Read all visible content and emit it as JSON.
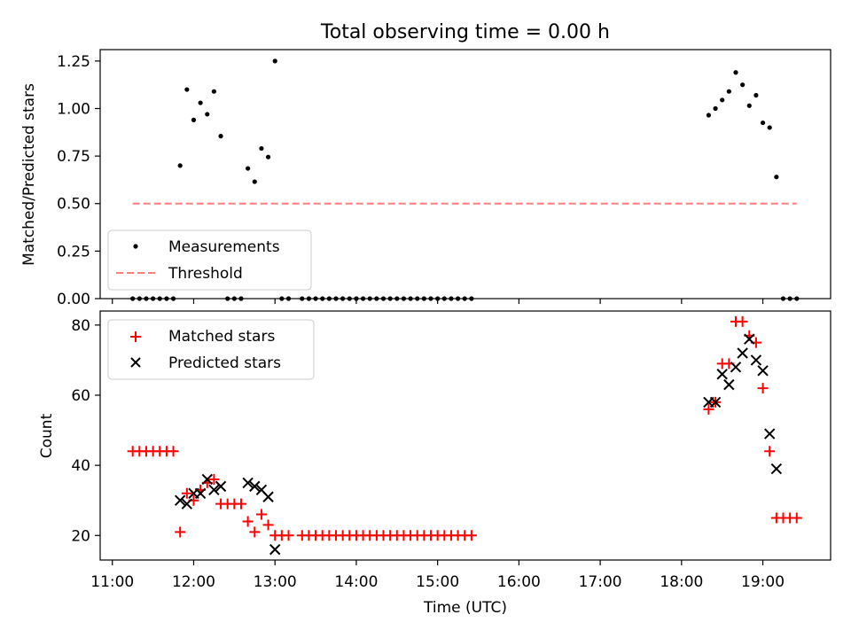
{
  "figure": {
    "title": "Total observing time = 0.00 h",
    "xlabel": "Time (UTC)"
  },
  "colors": {
    "measurement": "#000000",
    "threshold": "#ff7f7f",
    "matched": "#ff0000",
    "predicted": "#000000"
  },
  "chart_data": [
    {
      "type": "scatter",
      "ylabel": "Matched/Predicted stars",
      "xlim": [
        "10:51",
        "19:50"
      ],
      "ylim": [
        0,
        1.31
      ],
      "x_ticks": [
        "11:00",
        "12:00",
        "13:00",
        "14:00",
        "15:00",
        "16:00",
        "17:00",
        "18:00",
        "19:00"
      ],
      "y_ticks": [
        "0.00",
        "0.25",
        "0.50",
        "0.75",
        "1.00",
        "1.25"
      ],
      "legend_position": "lower-left",
      "series": [
        {
          "name": "Measurements",
          "marker": "dot",
          "points": [
            [
              "11:15",
              0
            ],
            [
              "11:20",
              0
            ],
            [
              "11:25",
              0
            ],
            [
              "11:30",
              0
            ],
            [
              "11:35",
              0
            ],
            [
              "11:40",
              0
            ],
            [
              "11:45",
              0
            ],
            [
              "11:50",
              0.7
            ],
            [
              "11:55",
              1.1
            ],
            [
              "12:00",
              0.94
            ],
            [
              "12:05",
              1.03
            ],
            [
              "12:10",
              0.97
            ],
            [
              "12:15",
              1.09
            ],
            [
              "12:20",
              0.855
            ],
            [
              "12:25",
              0
            ],
            [
              "12:30",
              0
            ],
            [
              "12:35",
              0
            ],
            [
              "12:40",
              0.685
            ],
            [
              "12:45",
              0.615
            ],
            [
              "12:50",
              0.79
            ],
            [
              "12:55",
              0.745
            ],
            [
              "13:00",
              1.25
            ],
            [
              "13:05",
              0
            ],
            [
              "13:10",
              0
            ],
            [
              "13:20",
              0
            ],
            [
              "13:25",
              0
            ],
            [
              "13:30",
              0
            ],
            [
              "13:35",
              0
            ],
            [
              "13:40",
              0
            ],
            [
              "13:45",
              0
            ],
            [
              "13:50",
              0
            ],
            [
              "13:55",
              0
            ],
            [
              "14:00",
              0
            ],
            [
              "14:05",
              0
            ],
            [
              "14:10",
              0
            ],
            [
              "14:15",
              0
            ],
            [
              "14:20",
              0
            ],
            [
              "14:25",
              0
            ],
            [
              "14:30",
              0
            ],
            [
              "14:35",
              0
            ],
            [
              "14:40",
              0
            ],
            [
              "14:45",
              0
            ],
            [
              "14:50",
              0
            ],
            [
              "14:55",
              0
            ],
            [
              "15:00",
              0
            ],
            [
              "15:05",
              0
            ],
            [
              "15:10",
              0
            ],
            [
              "15:15",
              0
            ],
            [
              "15:20",
              0
            ],
            [
              "15:25",
              0
            ],
            [
              "18:20",
              0.965
            ],
            [
              "18:25",
              1.0
            ],
            [
              "18:30",
              1.045
            ],
            [
              "18:35",
              1.09
            ],
            [
              "18:40",
              1.19
            ],
            [
              "18:45",
              1.125
            ],
            [
              "18:50",
              1.015
            ],
            [
              "18:55",
              1.07
            ],
            [
              "19:00",
              0.925
            ],
            [
              "19:05",
              0.9
            ],
            [
              "19:10",
              0.64
            ],
            [
              "19:15",
              0
            ],
            [
              "19:20",
              0
            ],
            [
              "19:25",
              0
            ]
          ]
        },
        {
          "name": "Threshold",
          "style": "dashed",
          "points": [
            [
              "11:15",
              0.5
            ],
            [
              "19:25",
              0.5
            ]
          ]
        }
      ]
    },
    {
      "type": "scatter",
      "ylabel": "Count",
      "xlim": [
        "10:51",
        "19:50"
      ],
      "ylim": [
        13,
        84
      ],
      "x_ticks": [
        "11:00",
        "12:00",
        "13:00",
        "14:00",
        "15:00",
        "16:00",
        "17:00",
        "18:00",
        "19:00"
      ],
      "y_ticks": [
        "20",
        "40",
        "60",
        "80"
      ],
      "legend_position": "top-left",
      "series": [
        {
          "name": "Matched stars",
          "marker": "plus",
          "points": [
            [
              "11:15",
              44
            ],
            [
              "11:20",
              44
            ],
            [
              "11:25",
              44
            ],
            [
              "11:30",
              44
            ],
            [
              "11:35",
              44
            ],
            [
              "11:40",
              44
            ],
            [
              "11:45",
              44
            ],
            [
              "11:50",
              21
            ],
            [
              "11:55",
              32
            ],
            [
              "12:00",
              30
            ],
            [
              "12:05",
              33
            ],
            [
              "12:10",
              35
            ],
            [
              "12:15",
              36
            ],
            [
              "12:20",
              29
            ],
            [
              "12:25",
              29
            ],
            [
              "12:30",
              29
            ],
            [
              "12:35",
              29
            ],
            [
              "12:40",
              24
            ],
            [
              "12:45",
              21
            ],
            [
              "12:50",
              26
            ],
            [
              "12:55",
              23
            ],
            [
              "13:00",
              20
            ],
            [
              "13:05",
              20
            ],
            [
              "13:10",
              20
            ],
            [
              "13:20",
              20
            ],
            [
              "13:25",
              20
            ],
            [
              "13:30",
              20
            ],
            [
              "13:35",
              20
            ],
            [
              "13:40",
              20
            ],
            [
              "13:45",
              20
            ],
            [
              "13:50",
              20
            ],
            [
              "13:55",
              20
            ],
            [
              "14:00",
              20
            ],
            [
              "14:05",
              20
            ],
            [
              "14:10",
              20
            ],
            [
              "14:15",
              20
            ],
            [
              "14:20",
              20
            ],
            [
              "14:25",
              20
            ],
            [
              "14:30",
              20
            ],
            [
              "14:35",
              20
            ],
            [
              "14:40",
              20
            ],
            [
              "14:45",
              20
            ],
            [
              "14:50",
              20
            ],
            [
              "14:55",
              20
            ],
            [
              "15:00",
              20
            ],
            [
              "15:05",
              20
            ],
            [
              "15:10",
              20
            ],
            [
              "15:15",
              20
            ],
            [
              "15:20",
              20
            ],
            [
              "15:25",
              20
            ],
            [
              "18:20",
              56
            ],
            [
              "18:25",
              58
            ],
            [
              "18:30",
              69
            ],
            [
              "18:35",
              69
            ],
            [
              "18:40",
              81
            ],
            [
              "18:45",
              81
            ],
            [
              "18:50",
              77
            ],
            [
              "18:55",
              75
            ],
            [
              "19:00",
              62
            ],
            [
              "19:05",
              44
            ],
            [
              "19:10",
              25
            ],
            [
              "19:15",
              25
            ],
            [
              "19:20",
              25
            ],
            [
              "19:25",
              25
            ]
          ]
        },
        {
          "name": "Predicted stars",
          "marker": "x",
          "points": [
            [
              "11:50",
              30
            ],
            [
              "11:55",
              29
            ],
            [
              "12:00",
              32
            ],
            [
              "12:05",
              32
            ],
            [
              "12:10",
              36
            ],
            [
              "12:15",
              33
            ],
            [
              "12:20",
              34
            ],
            [
              "12:40",
              35
            ],
            [
              "12:45",
              34
            ],
            [
              "12:50",
              33
            ],
            [
              "12:55",
              31
            ],
            [
              "13:00",
              16
            ],
            [
              "18:20",
              58
            ],
            [
              "18:25",
              58
            ],
            [
              "18:30",
              66
            ],
            [
              "18:35",
              63
            ],
            [
              "18:40",
              68
            ],
            [
              "18:45",
              72
            ],
            [
              "18:50",
              76
            ],
            [
              "18:55",
              70
            ],
            [
              "19:00",
              67
            ],
            [
              "19:05",
              49
            ],
            [
              "19:10",
              39
            ]
          ]
        }
      ]
    }
  ]
}
